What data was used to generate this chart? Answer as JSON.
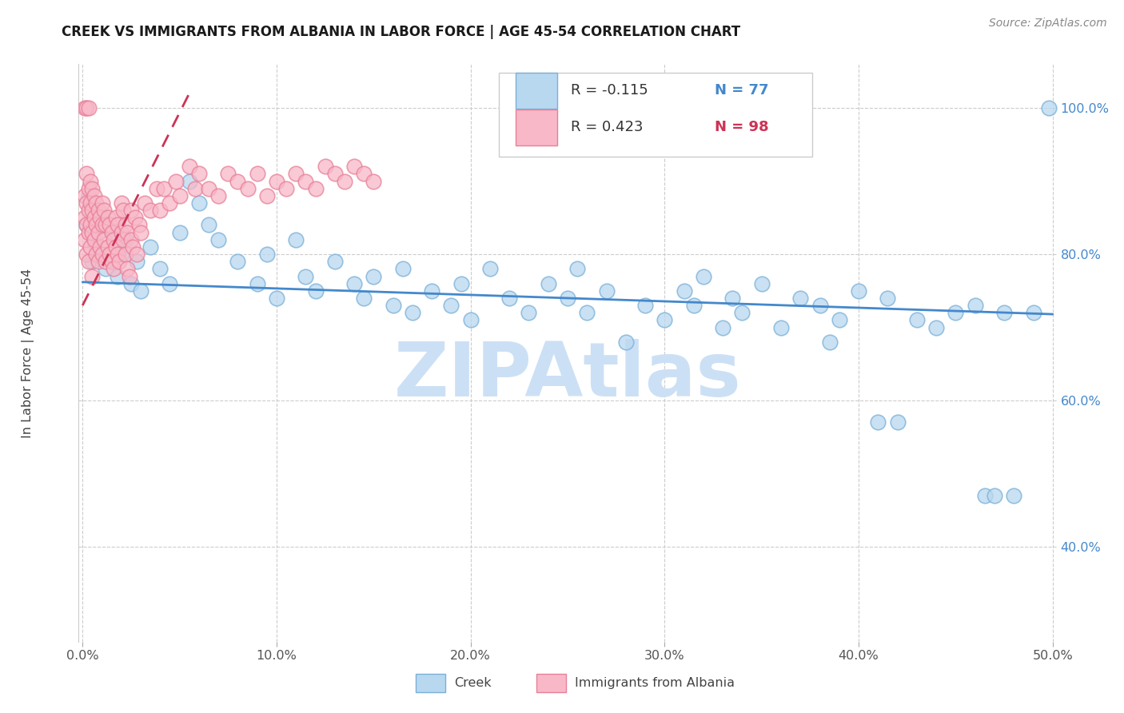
{
  "title": "CREEK VS IMMIGRANTS FROM ALBANIA IN LABOR FORCE | AGE 45-54 CORRELATION CHART",
  "source": "Source: ZipAtlas.com",
  "ylabel": "In Labor Force | Age 45-54",
  "xlim": [
    -0.002,
    0.502
  ],
  "ylim": [
    0.27,
    1.06
  ],
  "xticks": [
    0.0,
    0.1,
    0.2,
    0.3,
    0.4,
    0.5
  ],
  "xticklabels": [
    "0.0%",
    "10.0%",
    "20.0%",
    "30.0%",
    "40.0%",
    "50.0%"
  ],
  "yticks": [
    0.4,
    0.6,
    0.8,
    1.0
  ],
  "yticklabels": [
    "40.0%",
    "60.0%",
    "80.0%",
    "100.0%"
  ],
  "creek_color": "#b8d8f0",
  "creek_edge_color": "#7ab0d8",
  "albania_color": "#f8b8c8",
  "albania_edge_color": "#e88098",
  "trend_creek_color": "#4488cc",
  "trend_albania_color": "#cc3355",
  "R_creek": -0.115,
  "N_creek": 77,
  "R_albania": 0.423,
  "N_albania": 98,
  "creek_trend_y_at_0": 0.762,
  "creek_trend_y_at_05": 0.718,
  "albania_trend_x0": 0.0,
  "albania_trend_x1": 0.055,
  "albania_trend_y0": 0.73,
  "albania_trend_y1": 1.02,
  "watermark_color": "#cce0f5",
  "creek_scatter_x": [
    0.002,
    0.003,
    0.005,
    0.006,
    0.008,
    0.01,
    0.012,
    0.015,
    0.018,
    0.02,
    0.022,
    0.025,
    0.028,
    0.03,
    0.035,
    0.04,
    0.045,
    0.05,
    0.055,
    0.06,
    0.065,
    0.07,
    0.08,
    0.09,
    0.095,
    0.1,
    0.11,
    0.115,
    0.12,
    0.13,
    0.14,
    0.145,
    0.15,
    0.16,
    0.165,
    0.17,
    0.18,
    0.19,
    0.195,
    0.2,
    0.21,
    0.22,
    0.23,
    0.24,
    0.25,
    0.255,
    0.26,
    0.27,
    0.28,
    0.29,
    0.3,
    0.31,
    0.315,
    0.32,
    0.33,
    0.335,
    0.34,
    0.35,
    0.36,
    0.37,
    0.38,
    0.385,
    0.39,
    0.4,
    0.41,
    0.415,
    0.42,
    0.43,
    0.44,
    0.45,
    0.46,
    0.465,
    0.47,
    0.475,
    0.48,
    0.49,
    0.498
  ],
  "creek_scatter_y": [
    0.84,
    0.88,
    0.79,
    0.82,
    0.8,
    0.85,
    0.78,
    0.83,
    0.77,
    0.8,
    0.82,
    0.76,
    0.79,
    0.75,
    0.81,
    0.78,
    0.76,
    0.83,
    0.9,
    0.87,
    0.84,
    0.82,
    0.79,
    0.76,
    0.8,
    0.74,
    0.82,
    0.77,
    0.75,
    0.79,
    0.76,
    0.74,
    0.77,
    0.73,
    0.78,
    0.72,
    0.75,
    0.73,
    0.76,
    0.71,
    0.78,
    0.74,
    0.72,
    0.76,
    0.74,
    0.78,
    0.72,
    0.75,
    0.68,
    0.73,
    0.71,
    0.75,
    0.73,
    0.77,
    0.7,
    0.74,
    0.72,
    0.76,
    0.7,
    0.74,
    0.73,
    0.68,
    0.71,
    0.75,
    0.57,
    0.74,
    0.57,
    0.71,
    0.7,
    0.72,
    0.73,
    0.47,
    0.47,
    0.72,
    0.47,
    0.72,
    1.0
  ],
  "albania_scatter_x": [
    0.001,
    0.001,
    0.001,
    0.002,
    0.002,
    0.002,
    0.002,
    0.003,
    0.003,
    0.003,
    0.003,
    0.004,
    0.004,
    0.004,
    0.004,
    0.005,
    0.005,
    0.005,
    0.005,
    0.006,
    0.006,
    0.006,
    0.007,
    0.007,
    0.007,
    0.008,
    0.008,
    0.008,
    0.009,
    0.009,
    0.01,
    0.01,
    0.01,
    0.011,
    0.011,
    0.012,
    0.012,
    0.013,
    0.013,
    0.014,
    0.014,
    0.015,
    0.015,
    0.016,
    0.016,
    0.017,
    0.017,
    0.018,
    0.018,
    0.019,
    0.02,
    0.02,
    0.021,
    0.021,
    0.022,
    0.022,
    0.023,
    0.023,
    0.024,
    0.025,
    0.025,
    0.026,
    0.027,
    0.028,
    0.029,
    0.03,
    0.032,
    0.035,
    0.038,
    0.04,
    0.042,
    0.045,
    0.048,
    0.05,
    0.055,
    0.058,
    0.06,
    0.065,
    0.07,
    0.075,
    0.08,
    0.085,
    0.09,
    0.095,
    0.1,
    0.105,
    0.11,
    0.115,
    0.12,
    0.125,
    0.13,
    0.135,
    0.14,
    0.145,
    0.15,
    0.001,
    0.002,
    0.003
  ],
  "albania_scatter_y": [
    0.85,
    0.88,
    0.82,
    0.84,
    0.87,
    0.8,
    0.91,
    0.83,
    0.86,
    0.89,
    0.79,
    0.84,
    0.87,
    0.81,
    0.9,
    0.83,
    0.86,
    0.89,
    0.77,
    0.82,
    0.85,
    0.88,
    0.8,
    0.84,
    0.87,
    0.79,
    0.83,
    0.86,
    0.81,
    0.85,
    0.8,
    0.84,
    0.87,
    0.82,
    0.86,
    0.79,
    0.84,
    0.81,
    0.85,
    0.8,
    0.84,
    0.79,
    0.83,
    0.78,
    0.82,
    0.81,
    0.85,
    0.8,
    0.84,
    0.79,
    0.83,
    0.87,
    0.82,
    0.86,
    0.8,
    0.84,
    0.78,
    0.83,
    0.77,
    0.82,
    0.86,
    0.81,
    0.85,
    0.8,
    0.84,
    0.83,
    0.87,
    0.86,
    0.89,
    0.86,
    0.89,
    0.87,
    0.9,
    0.88,
    0.92,
    0.89,
    0.91,
    0.89,
    0.88,
    0.91,
    0.9,
    0.89,
    0.91,
    0.88,
    0.9,
    0.89,
    0.91,
    0.9,
    0.89,
    0.92,
    0.91,
    0.9,
    0.92,
    0.91,
    0.9,
    1.0,
    1.0,
    1.0
  ]
}
